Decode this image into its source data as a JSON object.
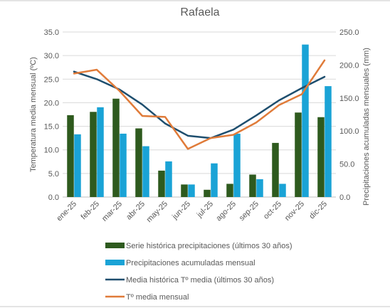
{
  "chart_data": {
    "type": "bar-line-combo",
    "title": "Rafaela",
    "categories": [
      "ene-25",
      "feb-25",
      "mar-25",
      "abr-25",
      "may-25",
      "jun-25",
      "jul-25",
      "ago-25",
      "sep-25",
      "oct-25",
      "nov-25",
      "dic-25"
    ],
    "y_left": {
      "label": "Temperatura media mensual (ºC)",
      "range": [
        0,
        35
      ],
      "ticks": [
        "0.0",
        "5.0",
        "10.0",
        "15.0",
        "20.0",
        "25.0",
        "30.0",
        "35.0"
      ],
      "tick_values": [
        0,
        5,
        10,
        15,
        20,
        25,
        30,
        35
      ]
    },
    "y_right": {
      "label": "Precipitaciones acumuladas mensuales (mm)",
      "range": [
        0,
        250
      ],
      "ticks": [
        "0.0",
        "50.0",
        "100.0",
        "150.0",
        "200.0",
        "250.0"
      ],
      "tick_values": [
        0,
        50,
        100,
        150,
        200,
        250
      ]
    },
    "series": [
      {
        "name": "Serie histórica precipitaciones (últimos 30 años)",
        "kind": "bar",
        "axis": "right",
        "color": "#2e5a1e",
        "values": [
          124,
          129,
          149,
          104,
          40,
          19,
          11,
          20,
          34,
          82,
          128,
          121
        ]
      },
      {
        "name": "Precipitaciones acumuladas mensual",
        "kind": "bar",
        "axis": "right",
        "color": "#1aa3d6",
        "values": [
          95,
          136,
          96,
          77,
          54,
          19,
          51,
          96,
          27,
          20,
          231,
          168
        ]
      },
      {
        "name": "Media histórica Tº media (últimos 30 años)",
        "kind": "line",
        "axis": "left",
        "color": "#1e4e6e",
        "values": [
          26.6,
          25.0,
          22.8,
          19.6,
          15.6,
          13.0,
          12.5,
          14.3,
          17.3,
          20.5,
          23.1,
          25.5
        ]
      },
      {
        "name": "Tº media mensual",
        "kind": "line",
        "axis": "left",
        "color": "#e07b39",
        "values": [
          26.2,
          27.0,
          22.5,
          17.2,
          17.0,
          10.2,
          12.5,
          13.2,
          15.8,
          19.5,
          21.8,
          29.0
        ]
      }
    ],
    "legend_position": "bottom",
    "grid": true
  }
}
